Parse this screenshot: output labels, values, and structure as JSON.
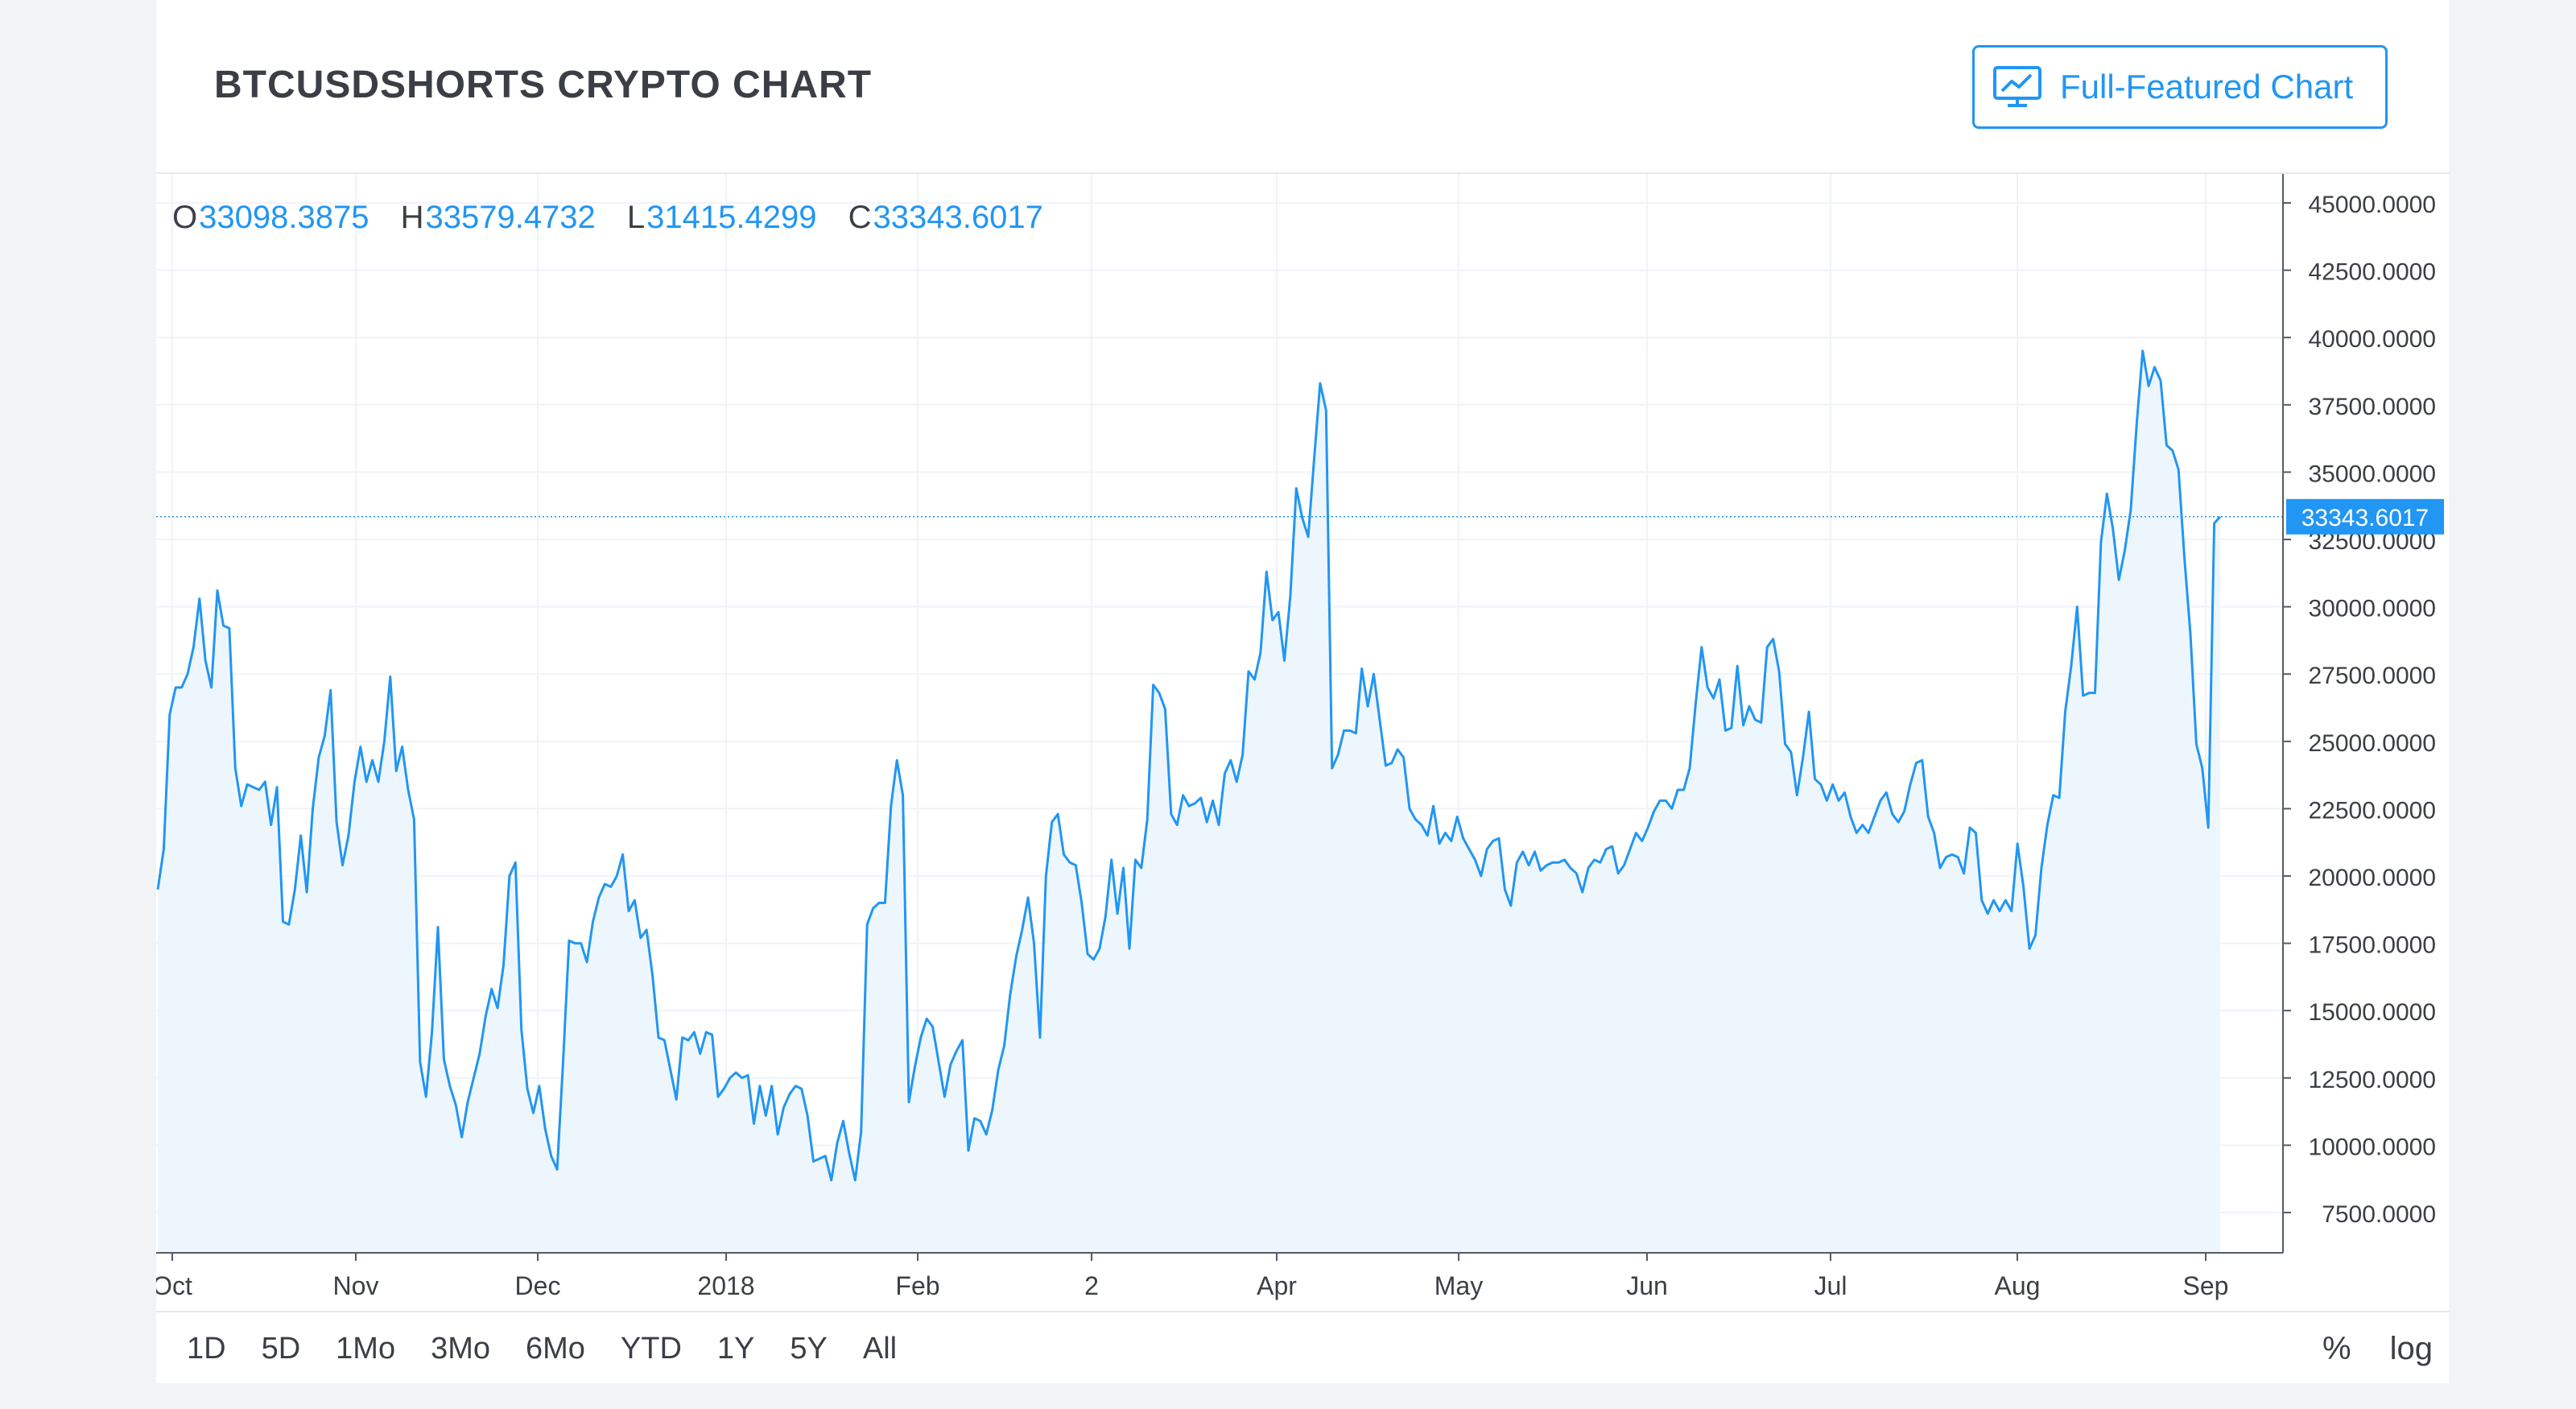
{
  "header": {
    "title": "BTCUSDSHORTS CRYPTO CHART",
    "button_label": "Full-Featured Chart"
  },
  "ohlc": {
    "o_key": "O",
    "o_val": "33098.3875",
    "h_key": "H",
    "h_val": "33579.4732",
    "l_key": "L",
    "l_val": "31415.4299",
    "c_key": "C",
    "c_val": "33343.6017"
  },
  "ranges": [
    "1D",
    "5D",
    "1Mo",
    "3Mo",
    "6Mo",
    "YTD",
    "1Y",
    "5Y",
    "All"
  ],
  "right_controls": {
    "percent": "%",
    "log": "log"
  },
  "colors": {
    "line": "#2196f3",
    "area": "#eef6fd",
    "text": "#3b3f45",
    "grid": "#f0f3fa"
  },
  "chart_data": {
    "type": "area",
    "title": "",
    "xlabel": "",
    "ylabel": "",
    "ylim": [
      5000,
      46000
    ],
    "grid": true,
    "last_value_label": "33343.6017",
    "y_ticks": [
      "45000.0000",
      "42500.0000",
      "40000.0000",
      "37500.0000",
      "35000.0000",
      "32500.0000",
      "30000.0000",
      "27500.0000",
      "25000.0000",
      "22500.0000",
      "20000.0000",
      "17500.0000",
      "15000.0000",
      "12500.0000",
      "10000.0000",
      "7500.0000"
    ],
    "x_ticks": [
      "Oct",
      "Nov",
      "Dec",
      "2018",
      "Feb",
      "2",
      "Apr",
      "May",
      "Jun",
      "Jul",
      "Aug",
      "Sep"
    ],
    "series": [
      {
        "values": [
          19500,
          21000,
          26000,
          27000,
          27000,
          27500,
          28500,
          30300,
          28000,
          27000,
          30600,
          29300,
          29200,
          24000,
          22600,
          23400,
          23300,
          23200,
          23500,
          21900,
          23300,
          18300,
          18200,
          19500,
          21500,
          19400,
          22500,
          24400,
          25200,
          26900,
          22000,
          20400,
          21500,
          23500,
          24800,
          23500,
          24300,
          23500,
          25000,
          27400,
          23900,
          24800,
          23200,
          22100,
          13100,
          11800,
          14200,
          18100,
          13200,
          12200,
          11500,
          10300,
          11600,
          12500,
          13400,
          14800,
          15800,
          15100,
          16700,
          20000,
          20500,
          14300,
          12100,
          11200,
          12200,
          10600,
          9600,
          9100,
          13100,
          17600,
          17500,
          17500,
          16800,
          18300,
          19200,
          19700,
          19600,
          20000,
          20800,
          18700,
          19100,
          17700,
          18000,
          16300,
          14000,
          13900,
          12800,
          11700,
          14000,
          13900,
          14200,
          13400,
          14200,
          14100,
          11800,
          12100,
          12500,
          12700,
          12500,
          12600,
          10800,
          12200,
          11100,
          12200,
          10400,
          11400,
          11900,
          12200,
          12100,
          11100,
          9400,
          9500,
          9600,
          8700,
          10100,
          10900,
          9700,
          8700,
          10500,
          18200,
          18800,
          19000,
          19000,
          22600,
          24300,
          23000,
          11600,
          12900,
          14000,
          14700,
          14400,
          13100,
          11800,
          13000,
          13500,
          13900,
          9800,
          11000,
          10900,
          10400,
          11300,
          12800,
          13700,
          15600,
          17000,
          18000,
          19200,
          17500,
          14000,
          20000,
          22000,
          22300,
          20800,
          20500,
          20400,
          19000,
          17100,
          16900,
          17300,
          18500,
          20600,
          18600,
          20300,
          17300,
          20600,
          20300,
          22100,
          27100,
          26800,
          26200,
          22300,
          21900,
          23000,
          22600,
          22700,
          22900,
          22000,
          22800,
          21900,
          23800,
          24300,
          23500,
          24500,
          27600,
          27300,
          28300,
          31300,
          29500,
          29800,
          28000,
          30400,
          34400,
          33300,
          32600,
          35500,
          38300,
          37300,
          24000,
          24500,
          25400,
          25400,
          25300,
          27700,
          26300,
          27500,
          25800,
          24100,
          24200,
          24700,
          24400,
          22500,
          22100,
          21900,
          21500,
          22600,
          21200,
          21600,
          21300,
          22200,
          21400,
          21000,
          20600,
          20000,
          21000,
          21300,
          21400,
          19500,
          18900,
          20500,
          20900,
          20400,
          20900,
          20200,
          20400,
          20500,
          20500,
          20600,
          20300,
          20100,
          19400,
          20300,
          20600,
          20500,
          21000,
          21100,
          20100,
          20400,
          21000,
          21600,
          21300,
          21800,
          22400,
          22800,
          22800,
          22500,
          23200,
          23200,
          24000,
          26400,
          28500,
          27000,
          26600,
          27300,
          25400,
          25500,
          27800,
          25600,
          26300,
          25800,
          25700,
          28500,
          28800,
          27600,
          24900,
          24600,
          23000,
          24400,
          26100,
          23600,
          23400,
          22800,
          23400,
          22800,
          23100,
          22200,
          21600,
          21900,
          21600,
          22200,
          22800,
          23100,
          22300,
          22000,
          22400,
          23400,
          24200,
          24300,
          22200,
          21600,
          20300,
          20700,
          20800,
          20700,
          20100,
          21800,
          21600,
          19100,
          18600,
          19100,
          18700,
          19100,
          18700,
          21200,
          19600,
          17300,
          17800,
          20300,
          21900,
          23000,
          22900,
          26100,
          27800,
          30000,
          26700,
          26800,
          26800,
          32400,
          34200,
          32900,
          31000,
          32100,
          33600,
          36800,
          39500,
          38200,
          38900,
          38400,
          36000,
          35800,
          35100,
          31800,
          29000,
          24900,
          24000,
          21800,
          33100,
          33343.6017
        ]
      }
    ]
  }
}
